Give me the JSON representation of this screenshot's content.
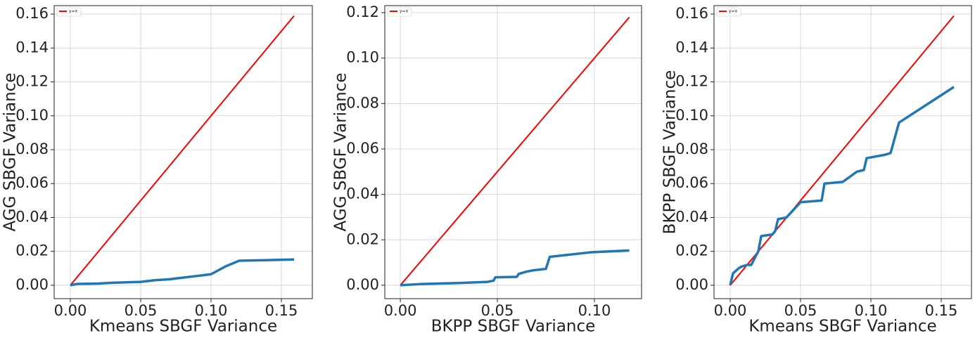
{
  "chart_data": [
    {
      "type": "line",
      "xlabel": "Kmeans SBGF Variance",
      "ylabel": "AGG SBGF Variance",
      "grid": true,
      "legend": "upper left",
      "xlim": [
        -0.0115,
        0.172
      ],
      "ylim": [
        -0.0079,
        0.165
      ],
      "xticks": [
        {
          "value": 0,
          "label": "0.00"
        },
        {
          "value": 0.05,
          "label": "0.05"
        },
        {
          "value": 0.1,
          "label": "0.10"
        },
        {
          "value": 0.15,
          "label": "0.15"
        }
      ],
      "yticks": [
        {
          "value": 0,
          "label": "0.00"
        },
        {
          "value": 0.02,
          "label": "0.02"
        },
        {
          "value": 0.04,
          "label": "0.04"
        },
        {
          "value": 0.06,
          "label": "0.06"
        },
        {
          "value": 0.08,
          "label": "0.08"
        },
        {
          "value": 0.1,
          "label": "0.10"
        },
        {
          "value": 0.12,
          "label": "0.12"
        },
        {
          "value": 0.14,
          "label": "0.14"
        },
        {
          "value": 0.16,
          "label": "0.16"
        }
      ],
      "series": [
        {
          "name": "y=x",
          "color": "#ff0000",
          "x": [
            0,
            0.159
          ],
          "values": [
            0,
            0.159
          ]
        },
        {
          "color": "#1f77b4",
          "x": [
            0,
            0.005,
            0.02,
            0.03,
            0.05,
            0.06,
            0.07,
            0.08,
            0.09,
            0.095,
            0.1,
            0.11,
            0.12,
            0.159
          ],
          "values": [
            0,
            0.0008,
            0.001,
            0.0015,
            0.002,
            0.003,
            0.0035,
            0.0045,
            0.0055,
            0.006,
            0.0065,
            0.011,
            0.0145,
            0.0152
          ]
        }
      ]
    },
    {
      "type": "line",
      "xlabel": "BKPP SBGF Variance",
      "ylabel": "AGG SBGF Variance",
      "grid": true,
      "legend": "upper left",
      "xlim": [
        -0.008,
        0.1243
      ],
      "ylim": [
        -0.0059,
        0.1231
      ],
      "xticks": [
        {
          "value": 0,
          "label": "0.00"
        },
        {
          "value": 0.05,
          "label": "0.05"
        },
        {
          "value": 0.1,
          "label": "0.10"
        }
      ],
      "yticks": [
        {
          "value": 0,
          "label": "0.00"
        },
        {
          "value": 0.02,
          "label": "0.02"
        },
        {
          "value": 0.04,
          "label": "0.04"
        },
        {
          "value": 0.06,
          "label": "0.06"
        },
        {
          "value": 0.08,
          "label": "0.08"
        },
        {
          "value": 0.1,
          "label": "0.10"
        },
        {
          "value": 0.12,
          "label": "0.12"
        }
      ],
      "series": [
        {
          "name": "y=x",
          "color": "#ff0000",
          "x": [
            0,
            0.118
          ],
          "values": [
            0,
            0.118
          ]
        },
        {
          "color": "#1f77b4",
          "x": [
            0,
            0.01,
            0.03,
            0.045,
            0.048,
            0.049,
            0.06,
            0.061,
            0.065,
            0.068,
            0.075,
            0.077,
            0.098,
            0.118
          ],
          "values": [
            0,
            0.0005,
            0.001,
            0.0015,
            0.002,
            0.0035,
            0.0037,
            0.005,
            0.006,
            0.0065,
            0.0072,
            0.0125,
            0.0145,
            0.0153
          ]
        }
      ]
    },
    {
      "type": "line",
      "xlabel": "Kmeans SBGF Variance",
      "ylabel": "BKPP SBGF Variance",
      "grid": true,
      "legend": "upper left",
      "xlim": [
        -0.0115,
        0.1715
      ],
      "ylim": [
        -0.0079,
        0.165
      ],
      "xticks": [
        {
          "value": 0,
          "label": "0.00"
        },
        {
          "value": 0.05,
          "label": "0.05"
        },
        {
          "value": 0.1,
          "label": "0.10"
        },
        {
          "value": 0.15,
          "label": "0.15"
        }
      ],
      "yticks": [
        {
          "value": 0,
          "label": "0.00"
        },
        {
          "value": 0.02,
          "label": "0.02"
        },
        {
          "value": 0.04,
          "label": "0.04"
        },
        {
          "value": 0.06,
          "label": "0.06"
        },
        {
          "value": 0.08,
          "label": "0.08"
        },
        {
          "value": 0.1,
          "label": "0.10"
        },
        {
          "value": 0.12,
          "label": "0.12"
        },
        {
          "value": 0.14,
          "label": "0.14"
        },
        {
          "value": 0.16,
          "label": "0.16"
        }
      ],
      "series": [
        {
          "name": "y=x",
          "color": "#ff0000",
          "x": [
            0,
            0.159
          ],
          "values": [
            0,
            0.159
          ]
        },
        {
          "color": "#1f77b4",
          "x": [
            0,
            0.002,
            0.006,
            0.008,
            0.012,
            0.015,
            0.018,
            0.02,
            0.022,
            0.03,
            0.032,
            0.034,
            0.04,
            0.05,
            0.065,
            0.067,
            0.08,
            0.09,
            0.095,
            0.097,
            0.11,
            0.114,
            0.118,
            0.12,
            0.159
          ],
          "values": [
            0,
            0.007,
            0.01,
            0.011,
            0.012,
            0.012,
            0.017,
            0.02,
            0.029,
            0.03,
            0.032,
            0.039,
            0.04,
            0.049,
            0.05,
            0.06,
            0.061,
            0.067,
            0.068,
            0.075,
            0.077,
            0.078,
            0.09,
            0.096,
            0.117
          ]
        }
      ]
    }
  ]
}
